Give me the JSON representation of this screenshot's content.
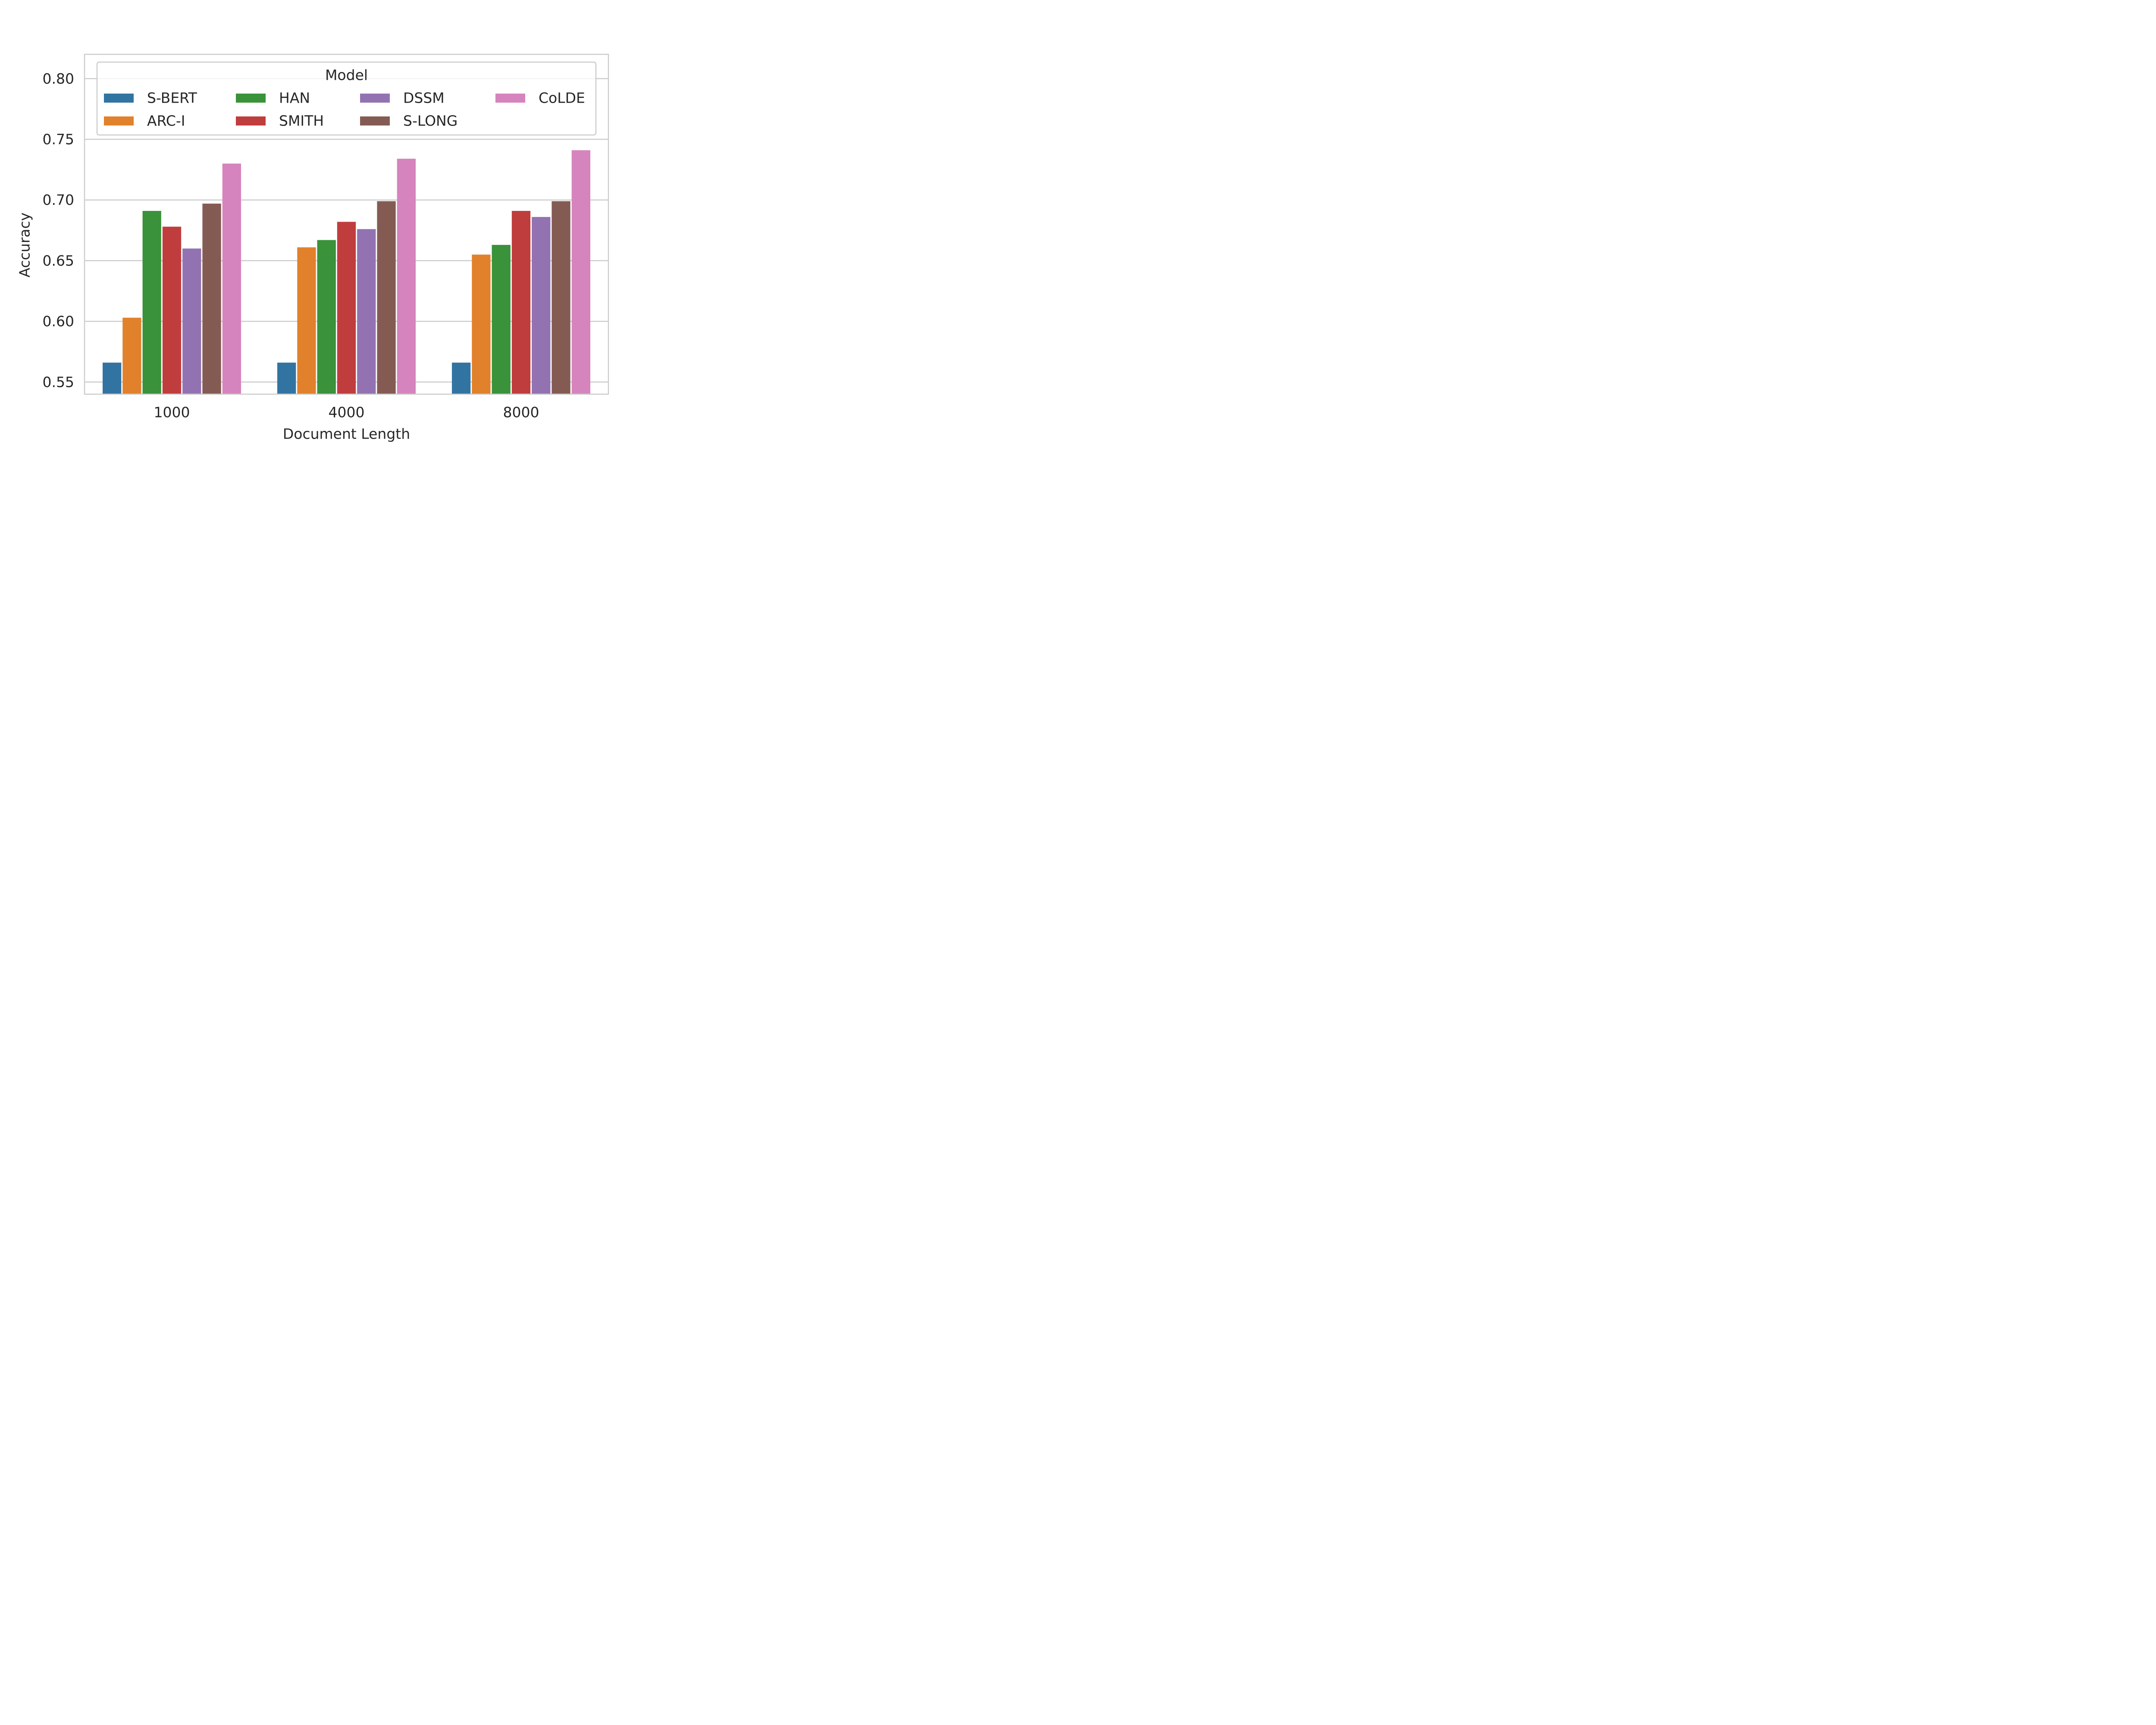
{
  "chart_data": {
    "type": "bar",
    "xlabel": "Document Length",
    "ylabel": "Accuracy",
    "categories": [
      "1000",
      "4000",
      "8000"
    ],
    "ylim": [
      0.54,
      0.82
    ],
    "yticks": [
      "0.55",
      "0.60",
      "0.65",
      "0.70",
      "0.75",
      "0.80"
    ],
    "grid": true,
    "legend": {
      "title": "Model",
      "position": "top",
      "columns": 4
    },
    "series": [
      {
        "name": "S-BERT",
        "color": "#3274a1",
        "values": [
          0.566,
          0.566,
          0.566
        ]
      },
      {
        "name": "ARC-I",
        "color": "#e1812c",
        "values": [
          0.603,
          0.661,
          0.655
        ]
      },
      {
        "name": "HAN",
        "color": "#3a923a",
        "values": [
          0.691,
          0.667,
          0.663
        ]
      },
      {
        "name": "SMITH",
        "color": "#c03d3e",
        "values": [
          0.678,
          0.682,
          0.691
        ]
      },
      {
        "name": "DSSM",
        "color": "#9372b2",
        "values": [
          0.66,
          0.676,
          0.686
        ]
      },
      {
        "name": "S-LONG",
        "color": "#845b53",
        "values": [
          0.697,
          0.699,
          0.699
        ]
      },
      {
        "name": "CoLDE",
        "color": "#d684bd",
        "values": [
          0.73,
          0.734,
          0.741
        ]
      }
    ]
  }
}
